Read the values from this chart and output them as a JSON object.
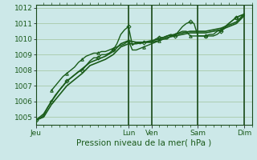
{
  "title": "",
  "xlabel": "Pression niveau de la mer( hPa )",
  "background_color": "#cce8e8",
  "grid_color": "#a8c8a8",
  "line_color": "#1a5c1a",
  "ylim": [
    1004.5,
    1012.2
  ],
  "yticks": [
    1005,
    1006,
    1007,
    1008,
    1009,
    1010,
    1011,
    1012
  ],
  "x_day_labels": [
    "Jeu",
    "Lun",
    "Ven",
    "Sam",
    "Dim"
  ],
  "x_day_positions": [
    0,
    72,
    90,
    126,
    162
  ],
  "total_hours": 168,
  "lines": [
    {
      "x": [
        0,
        3,
        6,
        9,
        12,
        15,
        18,
        21,
        24,
        27,
        30,
        33,
        36,
        39,
        42,
        45,
        48,
        51,
        54,
        57,
        60,
        63,
        66,
        69,
        72,
        75,
        78,
        81,
        84,
        87,
        90,
        93,
        96,
        99,
        102,
        105,
        108,
        111,
        114,
        117,
        120,
        123,
        126,
        129,
        132,
        135,
        138,
        141,
        144,
        147,
        150,
        153,
        156,
        159,
        162
      ],
      "y": [
        1004.8,
        1004.9,
        1005.1,
        1005.6,
        1006.0,
        1006.4,
        1006.7,
        1007.0,
        1007.3,
        1007.5,
        1007.7,
        1007.9,
        1008.0,
        1008.3,
        1008.6,
        1008.8,
        1008.8,
        1009.0,
        1009.0,
        1009.1,
        1009.3,
        1009.7,
        1010.3,
        1010.6,
        1010.8,
        1009.6,
        1009.8,
        1009.7,
        1009.8,
        1009.8,
        1009.8,
        1010.0,
        1010.1,
        1010.1,
        1010.2,
        1010.3,
        1010.2,
        1010.5,
        1010.8,
        1011.0,
        1011.1,
        1011.0,
        1010.2,
        1010.2,
        1010.2,
        1010.2,
        1010.2,
        1010.3,
        1010.5,
        1010.7,
        1011.0,
        1011.2,
        1011.4,
        1011.5,
        1011.6
      ],
      "marker": "D",
      "markersize": 2.5,
      "markevery": 4,
      "linestyle": "-",
      "linewidth": 1.0
    },
    {
      "x": [
        12,
        15,
        18,
        21,
        24,
        27,
        30,
        33,
        36,
        39,
        42,
        45,
        48,
        51,
        54,
        57,
        60,
        63,
        66,
        69,
        72,
        75,
        78,
        81,
        84,
        87,
        90,
        93,
        96,
        99,
        102,
        105,
        108,
        111,
        114,
        117,
        120,
        123,
        126,
        129,
        132,
        135,
        138,
        141,
        144,
        147,
        150,
        153,
        156,
        159,
        162
      ],
      "y": [
        1006.7,
        1007.0,
        1007.3,
        1007.6,
        1007.8,
        1008.0,
        1008.2,
        1008.5,
        1008.7,
        1008.9,
        1009.0,
        1009.1,
        1009.1,
        1009.2,
        1009.2,
        1009.3,
        1009.4,
        1009.5,
        1009.6,
        1009.7,
        1009.9,
        1009.3,
        1009.3,
        1009.4,
        1009.5,
        1009.6,
        1009.7,
        1009.8,
        1009.9,
        1010.0,
        1010.0,
        1010.2,
        1010.3,
        1010.4,
        1010.5,
        1010.5,
        1010.2,
        1010.2,
        1010.2,
        1010.2,
        1010.2,
        1010.3,
        1010.3,
        1010.5,
        1010.6,
        1010.8,
        1011.0,
        1011.2,
        1011.4,
        1011.5,
        1011.6
      ],
      "marker": "^",
      "markersize": 2.5,
      "markevery": 4,
      "linestyle": "-",
      "linewidth": 1.0
    },
    {
      "x": [
        0,
        6,
        12,
        18,
        24,
        30,
        36,
        42,
        48,
        54,
        60,
        66,
        72,
        78,
        84,
        90,
        96,
        102,
        108,
        114,
        120,
        126,
        132,
        138,
        144,
        150,
        156,
        162
      ],
      "y": [
        1004.8,
        1005.2,
        1006.0,
        1006.7,
        1007.3,
        1007.7,
        1008.1,
        1008.5,
        1008.7,
        1008.9,
        1009.2,
        1009.7,
        1009.9,
        1009.8,
        1009.8,
        1009.9,
        1010.0,
        1010.2,
        1010.3,
        1010.4,
        1010.5,
        1010.5,
        1010.5,
        1010.6,
        1010.7,
        1010.9,
        1011.1,
        1011.6
      ],
      "marker": null,
      "markersize": 0,
      "markevery": 1,
      "linestyle": "-",
      "linewidth": 1.2
    },
    {
      "x": [
        0,
        6,
        12,
        18,
        24,
        30,
        36,
        42,
        48,
        54,
        60,
        66,
        72,
        78,
        84,
        90,
        96,
        102,
        108,
        114,
        120,
        126,
        132,
        138,
        144,
        150,
        156,
        162
      ],
      "y": [
        1004.8,
        1005.0,
        1005.8,
        1006.4,
        1007.0,
        1007.4,
        1007.8,
        1008.3,
        1008.5,
        1008.7,
        1009.0,
        1009.5,
        1009.7,
        1009.7,
        1009.8,
        1009.8,
        1009.9,
        1010.1,
        1010.2,
        1010.3,
        1010.4,
        1010.4,
        1010.4,
        1010.5,
        1010.6,
        1010.8,
        1011.0,
        1011.5
      ],
      "marker": null,
      "markersize": 0,
      "markevery": 1,
      "linestyle": "-",
      "linewidth": 1.2
    }
  ],
  "vline_positions": [
    72,
    90,
    126,
    162
  ],
  "vline_color": "#1a4a1a",
  "tick_label_color": "#1a5a1a",
  "tick_label_fontsize": 6.5,
  "xlabel_fontsize": 7.5
}
